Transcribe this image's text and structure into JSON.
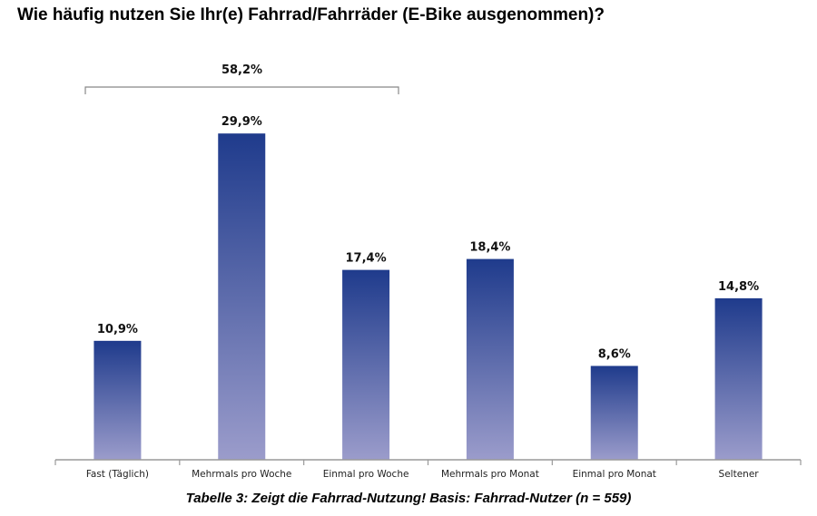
{
  "title": "Wie häufig nutzen Sie Ihr(e) Fahrrad/Fahrräder (E-Bike ausgenommen)?",
  "caption": "Tabelle 3: Zeigt die Fahrrad-Nutzung! Basis: Fahrrad-Nutzer (n = 559)",
  "colors": {
    "bar_top": "#1f3b8c",
    "bar_bottom": "#9b9ccb",
    "axis": "#999999",
    "bracket": "#888888"
  },
  "chart_data": {
    "type": "bar",
    "categories": [
      "Fast (Täglich)",
      "Mehrmals pro Woche",
      "Einmal pro Woche",
      "Mehrmals pro Monat",
      "Einmal pro Monat",
      "Seltener"
    ],
    "values": [
      10.9,
      29.9,
      17.4,
      18.4,
      8.6,
      14.8
    ],
    "value_labels": [
      "10,9%",
      "29,9%",
      "17,4%",
      "18,4%",
      "8,6%",
      "14,8%"
    ],
    "ylim": [
      0,
      30
    ],
    "grid": false,
    "annotations": [
      {
        "text": "58,2%",
        "spans_categories": [
          "Fast (Täglich)",
          "Mehrmals pro Woche",
          "Einmal pro Woche"
        ]
      }
    ]
  }
}
